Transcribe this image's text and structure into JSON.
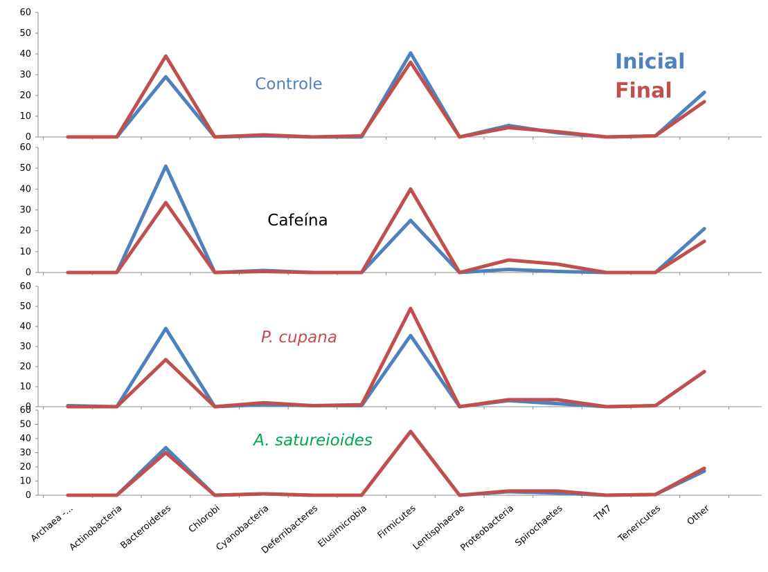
{
  "chart_data": [
    {
      "type": "line",
      "title": "Controle",
      "title_color": "#4F81BD",
      "title_italic": false,
      "ylim": [
        0,
        60
      ],
      "yticks": [
        "0",
        "10",
        "20",
        "30",
        "40",
        "50",
        "60"
      ],
      "grid": false,
      "series": [
        {
          "name": "Inicial",
          "color": "#4F81BD",
          "values": [
            0,
            0,
            29,
            0,
            0.5,
            0,
            0,
            40.5,
            0,
            5.5,
            2,
            0,
            0.5,
            21.5
          ]
        },
        {
          "name": "Final",
          "color": "#C0504D",
          "values": [
            0,
            0,
            39,
            0,
            1,
            0,
            0.5,
            36,
            0,
            4.5,
            2.5,
            0,
            0.5,
            17
          ]
        }
      ]
    },
    {
      "type": "line",
      "title": "Cafeína",
      "title_color": "#000000",
      "title_italic": false,
      "ylim": [
        0,
        60
      ],
      "yticks": [
        "0",
        "10",
        "20",
        "30",
        "40",
        "50",
        "60"
      ],
      "grid": false,
      "series": [
        {
          "name": "Inicial",
          "color": "#4F81BD",
          "values": [
            0,
            0,
            51,
            0,
            1,
            0,
            0,
            25,
            0,
            1.5,
            0.5,
            0,
            0,
            21
          ]
        },
        {
          "name": "Final",
          "color": "#C0504D",
          "values": [
            0,
            0,
            33.5,
            0,
            0.5,
            0,
            0,
            40,
            0,
            6,
            4,
            0,
            0,
            15
          ]
        }
      ]
    },
    {
      "type": "line",
      "title": "P. cupana",
      "title_color": "#C0504D",
      "title_italic": true,
      "ylim": [
        0,
        60
      ],
      "yticks": [
        "0",
        "10",
        "20",
        "30",
        "40",
        "50",
        "60"
      ],
      "grid": false,
      "series": [
        {
          "name": "Inicial",
          "color": "#4F81BD",
          "values": [
            0.5,
            0,
            39,
            0,
            1,
            0.5,
            0.5,
            35.5,
            0,
            3,
            1.5,
            0,
            0.5,
            17.5
          ]
        },
        {
          "name": "Final",
          "color": "#C0504D",
          "values": [
            0,
            0,
            23.5,
            0,
            2,
            0.5,
            1,
            49,
            0,
            3.5,
            3.5,
            0,
            0.5,
            17.5
          ]
        }
      ]
    },
    {
      "type": "line",
      "title": "A. satureioides",
      "title_color": "#00A651",
      "title_italic": true,
      "ylim": [
        0,
        60
      ],
      "yticks": [
        "0",
        "10",
        "20",
        "30",
        "40",
        "50",
        "60"
      ],
      "grid": false,
      "series": [
        {
          "name": "Inicial",
          "color": "#4F81BD",
          "values": [
            0,
            0,
            33.5,
            0,
            1,
            0,
            0,
            45,
            0,
            2.5,
            1.5,
            0,
            0.5,
            17
          ]
        },
        {
          "name": "Final",
          "color": "#C0504D",
          "values": [
            0,
            0,
            30,
            0,
            1,
            0,
            0,
            45,
            0,
            3,
            3,
            0,
            0.5,
            19
          ]
        }
      ]
    }
  ],
  "categories": [
    "Archaea -...",
    "Actinobacteria",
    "Bacteroidetes",
    "Chlorobi",
    "Cyanobacteria",
    "Deferribacteres",
    "Elusimicrobia",
    "Firmicutes",
    "Lentisphaerae",
    "Proteobacteria",
    "Spirochaetes",
    "TM7",
    "Tenericutes",
    "Other"
  ],
  "legend": [
    {
      "label": "Inicial",
      "color": "#4F81BD"
    },
    {
      "label": "Final",
      "color": "#C0504D"
    }
  ]
}
